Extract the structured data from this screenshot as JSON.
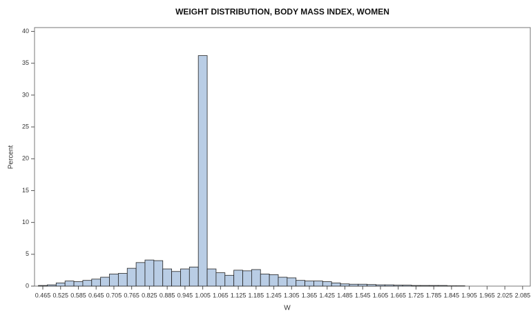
{
  "chart_data": {
    "type": "histogram",
    "title": "WEIGHT DISTRIBUTION, BODY MASS INDEX, WOMEN",
    "x_label": "W",
    "y_label": "Percent",
    "color": "#b9cde5",
    "edge_color": "#222222",
    "bins": [
      0.45,
      0.48,
      0.51,
      0.54,
      0.57,
      0.6,
      0.63,
      0.66,
      0.69,
      0.72,
      0.75,
      0.78,
      0.81,
      0.84,
      0.87,
      0.9,
      0.93,
      0.96,
      0.99,
      1.02,
      1.05,
      1.08,
      1.11,
      1.14,
      1.17,
      1.2,
      1.23,
      1.26,
      1.29,
      1.32,
      1.35,
      1.38,
      1.41,
      1.44,
      1.47,
      1.5,
      1.53,
      1.56,
      1.59,
      1.62,
      1.65,
      1.68,
      1.71,
      1.74,
      1.77,
      1.8,
      1.83,
      1.86,
      1.89
    ],
    "values": [
      0.1,
      0.2,
      0.5,
      0.8,
      0.7,
      0.9,
      1.1,
      1.4,
      1.9,
      2.0,
      2.8,
      3.7,
      4.1,
      4.0,
      2.7,
      2.3,
      2.7,
      3.0,
      36.2,
      2.7,
      2.1,
      1.7,
      2.5,
      2.4,
      2.6,
      1.9,
      1.8,
      1.4,
      1.3,
      0.9,
      0.8,
      0.8,
      0.7,
      0.5,
      0.35,
      0.3,
      0.3,
      0.25,
      0.2,
      0.2,
      0.15,
      0.15,
      0.1,
      0.1,
      0.1,
      0.1,
      0.05,
      0.05
    ],
    "xlim": [
      0.437,
      2.111
    ],
    "xticks": [
      0.465,
      0.525,
      0.585,
      0.645,
      0.705,
      0.765,
      0.825,
      0.885,
      0.945,
      1.005,
      1.065,
      1.125,
      1.185,
      1.245,
      1.305,
      1.365,
      1.425,
      1.485,
      1.545,
      1.605,
      1.665,
      1.725,
      1.785,
      1.845,
      1.905,
      1.965,
      2.025,
      2.085
    ],
    "ylim": [
      0,
      40.6
    ],
    "yticks": [
      0,
      5,
      10,
      15,
      20,
      25,
      30,
      35,
      40
    ]
  }
}
